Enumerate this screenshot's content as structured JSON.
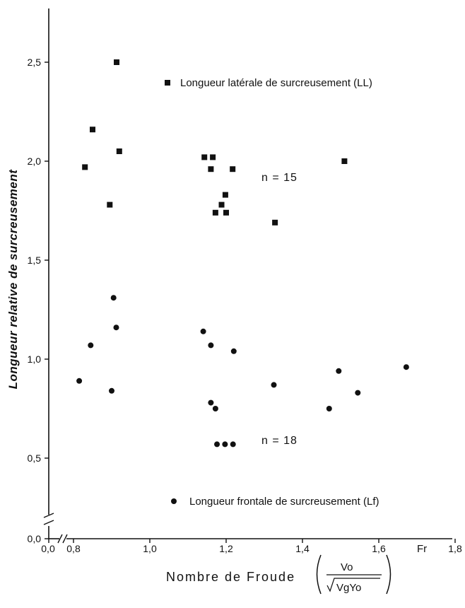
{
  "chart_data": {
    "type": "scatter",
    "xlabel": "Nombre de Froude",
    "xlabel_fraction": {
      "numerator": "Vo",
      "denominator": "VgYo"
    },
    "ylabel": "Longueur relative de surcreusement",
    "x_axis_end_label": "Fr",
    "x_ticks": [
      "0,0",
      "0,8",
      "1,0",
      "1,2",
      "1,4",
      "1,6",
      "1,8"
    ],
    "y_ticks": [
      "0,0",
      "0,5",
      "1,0",
      "1,5",
      "2,0",
      "2,5"
    ],
    "xlim": [
      0.8,
      1.8
    ],
    "ylim": [
      0.5,
      2.75
    ],
    "axis_break": true,
    "grid": false,
    "series": [
      {
        "name": "Longueur latérale de surcreusement (LL)",
        "marker": "square",
        "count_label": "n = 15",
        "points": [
          [
            0.83,
            1.97
          ],
          [
            0.85,
            2.16
          ],
          [
            0.895,
            1.78
          ],
          [
            0.913,
            2.5
          ],
          [
            0.92,
            2.05
          ],
          [
            1.143,
            2.02
          ],
          [
            1.16,
            1.96
          ],
          [
            1.165,
            2.02
          ],
          [
            1.172,
            1.74
          ],
          [
            1.188,
            1.78
          ],
          [
            1.198,
            1.83
          ],
          [
            1.2,
            1.74
          ],
          [
            1.217,
            1.96
          ],
          [
            1.328,
            1.69
          ],
          [
            1.51,
            2.0
          ]
        ]
      },
      {
        "name": "Longueur frontale de surcreusement (Lf)",
        "marker": "circle",
        "count_label": "n = 18",
        "points": [
          [
            0.815,
            0.89
          ],
          [
            0.845,
            1.07
          ],
          [
            0.9,
            0.84
          ],
          [
            0.905,
            1.31
          ],
          [
            0.912,
            1.16
          ],
          [
            1.14,
            1.14
          ],
          [
            1.16,
            1.07
          ],
          [
            1.16,
            0.78
          ],
          [
            1.172,
            0.75
          ],
          [
            1.176,
            0.57
          ],
          [
            1.197,
            0.57
          ],
          [
            1.22,
            1.04
          ],
          [
            1.218,
            0.57
          ],
          [
            1.325,
            0.87
          ],
          [
            1.47,
            0.75
          ],
          [
            1.495,
            0.94
          ],
          [
            1.545,
            0.83
          ],
          [
            1.672,
            0.96
          ]
        ]
      }
    ]
  }
}
